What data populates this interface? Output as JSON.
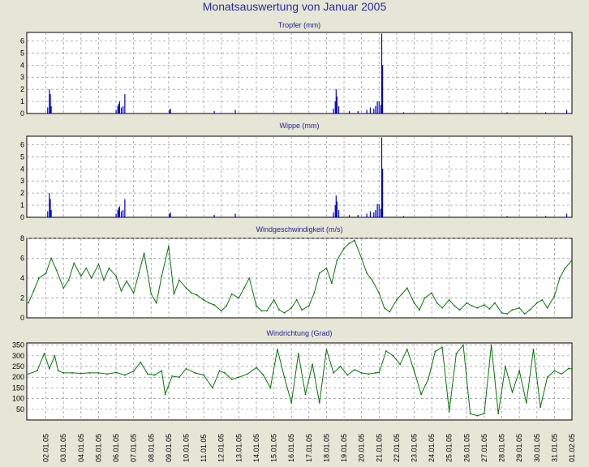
{
  "title": "Monatsauswertung von Januar 2005",
  "colors": {
    "background": "#e6e6d6",
    "plot_bg": "#ffffff",
    "rain": "#0000cc",
    "wind": "#007a00",
    "grid": "#9090a0",
    "title": "#2a2aa8"
  },
  "x_ticks": [
    "02.01.05",
    "03.01.05",
    "04.01.05",
    "05.01.05",
    "06.01.05",
    "07.01.05",
    "08.01.05",
    "09.01.05",
    "10.01.05",
    "11.01.05",
    "12.01.05",
    "13.01.05",
    "14.01.05",
    "15.01.05",
    "16.01.05",
    "17.01.05",
    "18.01.05",
    "19.01.05",
    "20.01.05",
    "21.01.05",
    "22.01.05",
    "23.01.05",
    "24.01.05",
    "25.01.05",
    "26.01.05",
    "27.01.05",
    "28.01.05",
    "29.01.05",
    "30.01.05",
    "31.01.05",
    "01.02.05"
  ],
  "chart_data": [
    {
      "type": "bar",
      "title": "Tropfer (mm)",
      "ylim": [
        0,
        6.7
      ],
      "yticks": [
        0,
        1,
        2,
        3,
        4,
        5,
        6
      ],
      "grid": true,
      "x": [
        1.1,
        1.2,
        1.25,
        1.3,
        5.0,
        5.1,
        5.15,
        5.2,
        5.3,
        5.4,
        5.5,
        8.05,
        8.1,
        10.6,
        11.8,
        17.4,
        17.5,
        17.55,
        17.6,
        17.7,
        18.3,
        18.8,
        19.3,
        19.5,
        19.7,
        19.8,
        19.9,
        20.0,
        20.1,
        20.15,
        20.2,
        21.4,
        27.3,
        29.5,
        30.7
      ],
      "values": [
        0.5,
        2.0,
        1.6,
        0.6,
        0.3,
        0.6,
        0.8,
        1.0,
        0.5,
        0.6,
        1.6,
        0.3,
        0.4,
        0.2,
        0.3,
        0.4,
        1.0,
        2.0,
        1.4,
        0.6,
        0.2,
        0.2,
        0.3,
        0.5,
        0.4,
        0.6,
        1.0,
        1.0,
        0.7,
        6.6,
        4.0,
        0.1,
        0.1,
        0.1,
        0.3
      ]
    },
    {
      "type": "bar",
      "title": "Wippe (mm)",
      "ylim": [
        0,
        6.7
      ],
      "yticks": [
        0,
        1,
        2,
        3,
        4,
        5,
        6
      ],
      "grid": true,
      "x": [
        1.1,
        1.2,
        1.25,
        1.3,
        5.0,
        5.1,
        5.15,
        5.2,
        5.3,
        5.4,
        5.5,
        8.05,
        8.1,
        10.6,
        11.8,
        17.4,
        17.5,
        17.55,
        17.6,
        17.7,
        18.3,
        18.8,
        19.3,
        19.5,
        19.7,
        19.8,
        19.9,
        20.0,
        20.1,
        20.15,
        20.2,
        21.4,
        27.3,
        29.5,
        30.7
      ],
      "values": [
        0.5,
        2.0,
        1.5,
        0.6,
        0.3,
        0.6,
        0.8,
        0.9,
        0.5,
        0.6,
        1.5,
        0.3,
        0.4,
        0.2,
        0.3,
        0.4,
        1.0,
        1.8,
        1.3,
        0.6,
        0.2,
        0.2,
        0.3,
        0.5,
        0.4,
        0.6,
        1.1,
        1.1,
        0.7,
        6.6,
        4.0,
        0.1,
        0.1,
        0.1,
        0.3
      ]
    },
    {
      "type": "line",
      "title": "Windgeschwindigkeit (m/s)",
      "ylim": [
        0,
        8
      ],
      "yticks": [
        0,
        2,
        4,
        6,
        8
      ],
      "grid": true,
      "x": [
        0.0,
        0.3,
        0.6,
        1.0,
        1.3,
        1.6,
        2.0,
        2.3,
        2.6,
        3.0,
        3.3,
        3.6,
        4.0,
        4.3,
        4.6,
        5.0,
        5.3,
        5.6,
        6.0,
        6.3,
        6.6,
        7.0,
        7.3,
        7.6,
        8.0,
        8.3,
        8.6,
        9.0,
        9.3,
        9.6,
        10.0,
        10.3,
        10.6,
        11.0,
        11.3,
        11.6,
        12.0,
        12.3,
        12.6,
        13.0,
        13.3,
        13.6,
        14.0,
        14.3,
        14.6,
        15.0,
        15.3,
        15.6,
        16.0,
        16.3,
        16.6,
        17.0,
        17.3,
        17.6,
        18.0,
        18.3,
        18.6,
        19.0,
        19.3,
        19.6,
        20.0,
        20.3,
        20.6,
        21.0,
        21.3,
        21.6,
        22.0,
        22.3,
        22.6,
        23.0,
        23.3,
        23.6,
        24.0,
        24.3,
        24.6,
        25.0,
        25.3,
        25.6,
        26.0,
        26.3,
        26.6,
        27.0,
        27.3,
        27.6,
        28.0,
        28.3,
        28.6,
        29.0,
        29.3,
        29.6,
        30.0,
        30.3,
        30.6,
        31.0
      ],
      "values": [
        1.5,
        2.7,
        4.0,
        4.5,
        6.0,
        4.8,
        3.0,
        3.8,
        5.5,
        4.2,
        5.0,
        4.0,
        5.4,
        3.8,
        5.0,
        4.2,
        2.7,
        3.7,
        2.5,
        4.5,
        6.5,
        2.4,
        1.5,
        4.2,
        7.2,
        2.4,
        3.8,
        3.0,
        2.5,
        2.3,
        1.8,
        1.5,
        1.3,
        0.7,
        1.2,
        2.4,
        2.0,
        3.0,
        4.0,
        1.2,
        0.7,
        0.7,
        1.8,
        0.8,
        0.5,
        1.0,
        1.8,
        0.8,
        1.2,
        2.5,
        4.5,
        5.0,
        3.5,
        5.8,
        7.0,
        7.5,
        7.8,
        6.0,
        4.5,
        3.8,
        2.5,
        1.0,
        0.6,
        1.8,
        2.4,
        3.0,
        1.5,
        0.8,
        2.0,
        2.5,
        1.5,
        1.0,
        1.8,
        1.2,
        0.8,
        1.5,
        1.2,
        1.0,
        1.3,
        0.9,
        1.5,
        0.5,
        0.4,
        0.8,
        1.0,
        0.4,
        0.8,
        1.5,
        1.8,
        1.0,
        2.2,
        4.0,
        5.0,
        5.8
      ]
    },
    {
      "type": "line",
      "title": "Windrichtung (Grad)",
      "ylim": [
        0,
        360
      ],
      "yticks": [
        50,
        100,
        150,
        200,
        250,
        300,
        350
      ],
      "grid": true,
      "x": [
        0.0,
        0.5,
        0.9,
        1.2,
        1.5,
        1.7,
        2.0,
        2.5,
        3.0,
        3.5,
        4.0,
        4.5,
        5.0,
        5.5,
        6.0,
        6.4,
        6.8,
        7.2,
        7.6,
        7.8,
        8.2,
        8.6,
        9.0,
        9.5,
        10.0,
        10.5,
        10.9,
        11.2,
        11.6,
        12.0,
        12.5,
        13.0,
        13.4,
        13.8,
        14.2,
        14.6,
        15.0,
        15.4,
        15.8,
        16.2,
        16.6,
        17.0,
        17.4,
        17.8,
        18.2,
        18.6,
        19.0,
        19.4,
        19.8,
        20.0,
        20.4,
        20.8,
        21.2,
        21.6,
        22.0,
        22.4,
        22.8,
        23.2,
        23.6,
        24.0,
        24.4,
        24.8,
        25.2,
        25.6,
        26.0,
        26.4,
        26.8,
        27.2,
        27.6,
        28.0,
        28.4,
        28.8,
        29.2,
        29.6,
        30.0,
        30.4,
        30.8,
        31.0
      ],
      "values": [
        215,
        230,
        310,
        240,
        300,
        230,
        220,
        220,
        218,
        220,
        220,
        215,
        222,
        210,
        228,
        270,
        215,
        210,
        230,
        120,
        205,
        200,
        240,
        220,
        210,
        150,
        230,
        220,
        190,
        200,
        215,
        245,
        210,
        150,
        330,
        200,
        80,
        310,
        120,
        260,
        80,
        330,
        220,
        250,
        210,
        235,
        220,
        215,
        220,
        222,
        322,
        300,
        260,
        330,
        230,
        120,
        190,
        320,
        340,
        40,
        310,
        350,
        30,
        20,
        30,
        350,
        30,
        250,
        130,
        230,
        80,
        330,
        60,
        200,
        230,
        215,
        240,
        240
      ]
    }
  ]
}
